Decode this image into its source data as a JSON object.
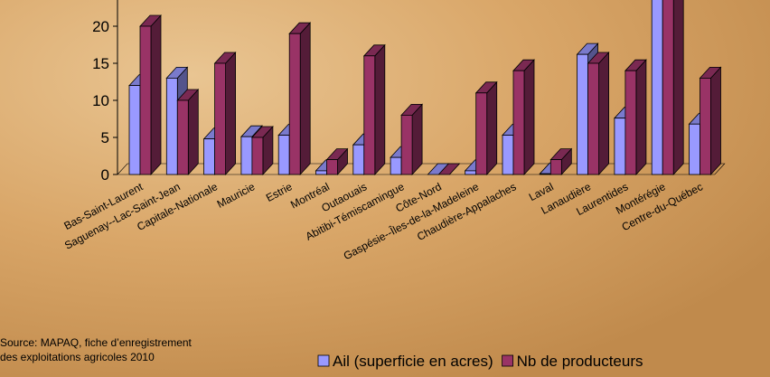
{
  "chart_data": {
    "type": "bar3d",
    "categories": [
      "Bas-Saint-Laurent",
      "Saguenay--Lac-Saint-Jean",
      "Capitale-Nationale",
      "Mauricie",
      "Estrie",
      "Montréal",
      "Outaouais",
      "Abitibi-Témiscamingue",
      "Côte-Nord",
      "Gaspésie--Îles-de-la-Madeleine",
      "Chaudière-Appalaches",
      "Laval",
      "Lanaudière",
      "Laurentides",
      "Montérégie",
      "Centre-du-Québec"
    ],
    "series": [
      {
        "name": "Ail (superficie en acres)",
        "color": "#9999ff",
        "values": [
          12,
          13,
          4.8,
          5.1,
          5.3,
          0.5,
          4,
          2.3,
          0,
          0.5,
          5.3,
          0.1,
          16.2,
          7.6,
          26,
          6.8
        ]
      },
      {
        "name": "Nb de producteurs",
        "color": "#993366",
        "values": [
          20,
          10,
          15,
          5,
          19,
          2,
          16,
          8,
          0,
          11,
          14,
          2,
          15,
          14,
          28,
          13
        ]
      }
    ],
    "ylim": [
      0,
      25
    ],
    "yticks": [
      0,
      5,
      10,
      15,
      20
    ],
    "source_lines": [
      "Source: MAPAQ, fiche d’enregistrement",
      "des exploitations agricoles 2010"
    ]
  }
}
